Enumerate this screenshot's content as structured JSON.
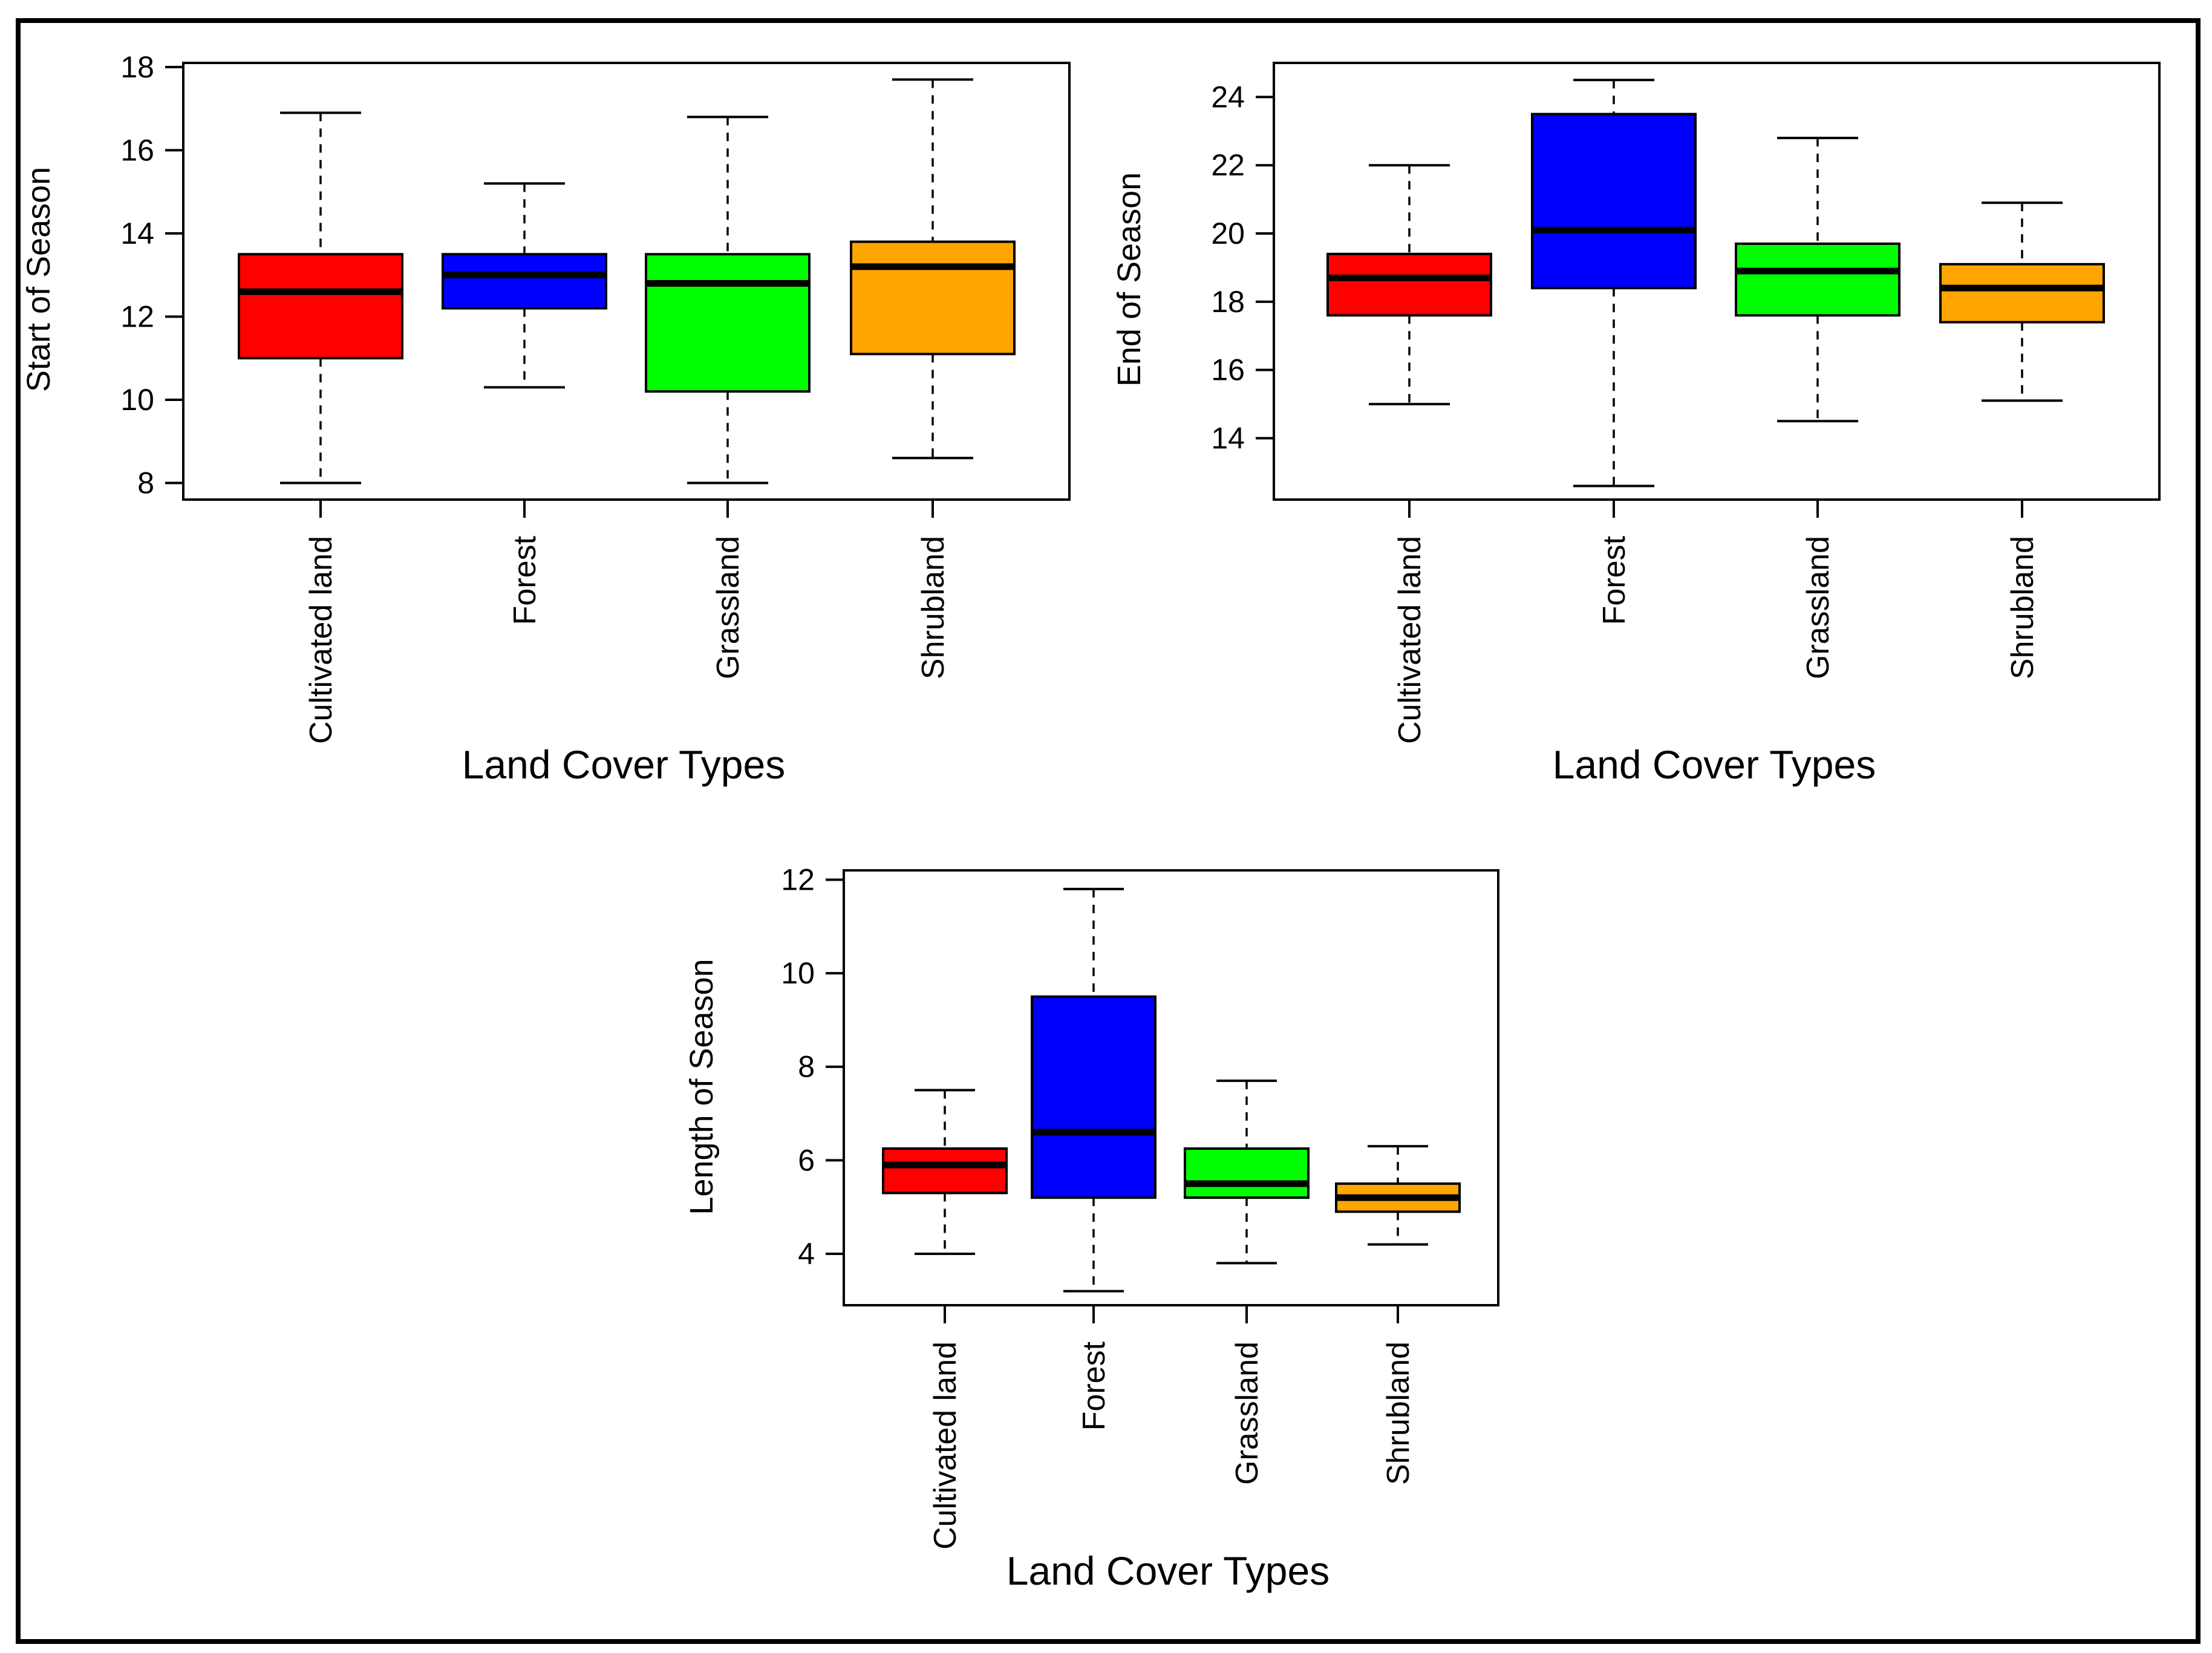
{
  "chart_data": [
    {
      "type": "boxplot",
      "ylabel": "Start of Season",
      "xlabel": "Land Cover Types",
      "categories": [
        "Cultivated land",
        "Forest",
        "Grassland",
        "Shrubland"
      ],
      "ylim": [
        7.6,
        18.1
      ],
      "yticks": [
        8,
        10,
        12,
        14,
        16,
        18
      ],
      "colors": [
        "#ff0000",
        "#0000ff",
        "#00ff00",
        "#ffa500"
      ],
      "series": [
        {
          "min": 8.0,
          "q1": 11.0,
          "median": 12.6,
          "q3": 13.5,
          "max": 16.9
        },
        {
          "min": 10.3,
          "q1": 12.2,
          "median": 13.0,
          "q3": 13.5,
          "max": 15.2
        },
        {
          "min": 8.0,
          "q1": 10.2,
          "median": 12.8,
          "q3": 13.5,
          "max": 16.8
        },
        {
          "min": 8.6,
          "q1": 11.1,
          "median": 13.2,
          "q3": 13.8,
          "max": 17.7
        }
      ]
    },
    {
      "type": "boxplot",
      "ylabel": "End of Season",
      "xlabel": "Land Cover Types",
      "categories": [
        "Cultivated land",
        "Forest",
        "Grassland",
        "Shrubland"
      ],
      "ylim": [
        12.2,
        25.0
      ],
      "yticks": [
        14,
        16,
        18,
        20,
        22,
        24
      ],
      "colors": [
        "#ff0000",
        "#0000ff",
        "#00ff00",
        "#ffa500"
      ],
      "series": [
        {
          "min": 15.0,
          "q1": 17.6,
          "median": 18.7,
          "q3": 19.4,
          "max": 22.0
        },
        {
          "min": 12.6,
          "q1": 18.4,
          "median": 20.1,
          "q3": 23.5,
          "max": 24.5
        },
        {
          "min": 14.5,
          "q1": 17.6,
          "median": 18.9,
          "q3": 19.7,
          "max": 22.8
        },
        {
          "min": 15.1,
          "q1": 17.4,
          "median": 18.4,
          "q3": 19.1,
          "max": 20.9
        }
      ]
    },
    {
      "type": "boxplot",
      "ylabel": "Length of Season",
      "xlabel": "Land Cover Types",
      "categories": [
        "Cultivated land",
        "Forest",
        "Grassland",
        "Shrubland"
      ],
      "ylim": [
        2.9,
        12.2
      ],
      "yticks": [
        4,
        6,
        8,
        10,
        12
      ],
      "colors": [
        "#ff0000",
        "#0000ff",
        "#00ff00",
        "#ffa500"
      ],
      "series": [
        {
          "min": 4.0,
          "q1": 5.3,
          "median": 5.9,
          "q3": 6.25,
          "max": 7.5
        },
        {
          "min": 3.2,
          "q1": 5.2,
          "median": 6.6,
          "q3": 9.5,
          "max": 11.8
        },
        {
          "min": 3.8,
          "q1": 5.2,
          "median": 5.5,
          "q3": 6.25,
          "max": 7.7
        },
        {
          "min": 4.2,
          "q1": 4.9,
          "median": 5.2,
          "q3": 5.5,
          "max": 6.3
        }
      ]
    }
  ]
}
